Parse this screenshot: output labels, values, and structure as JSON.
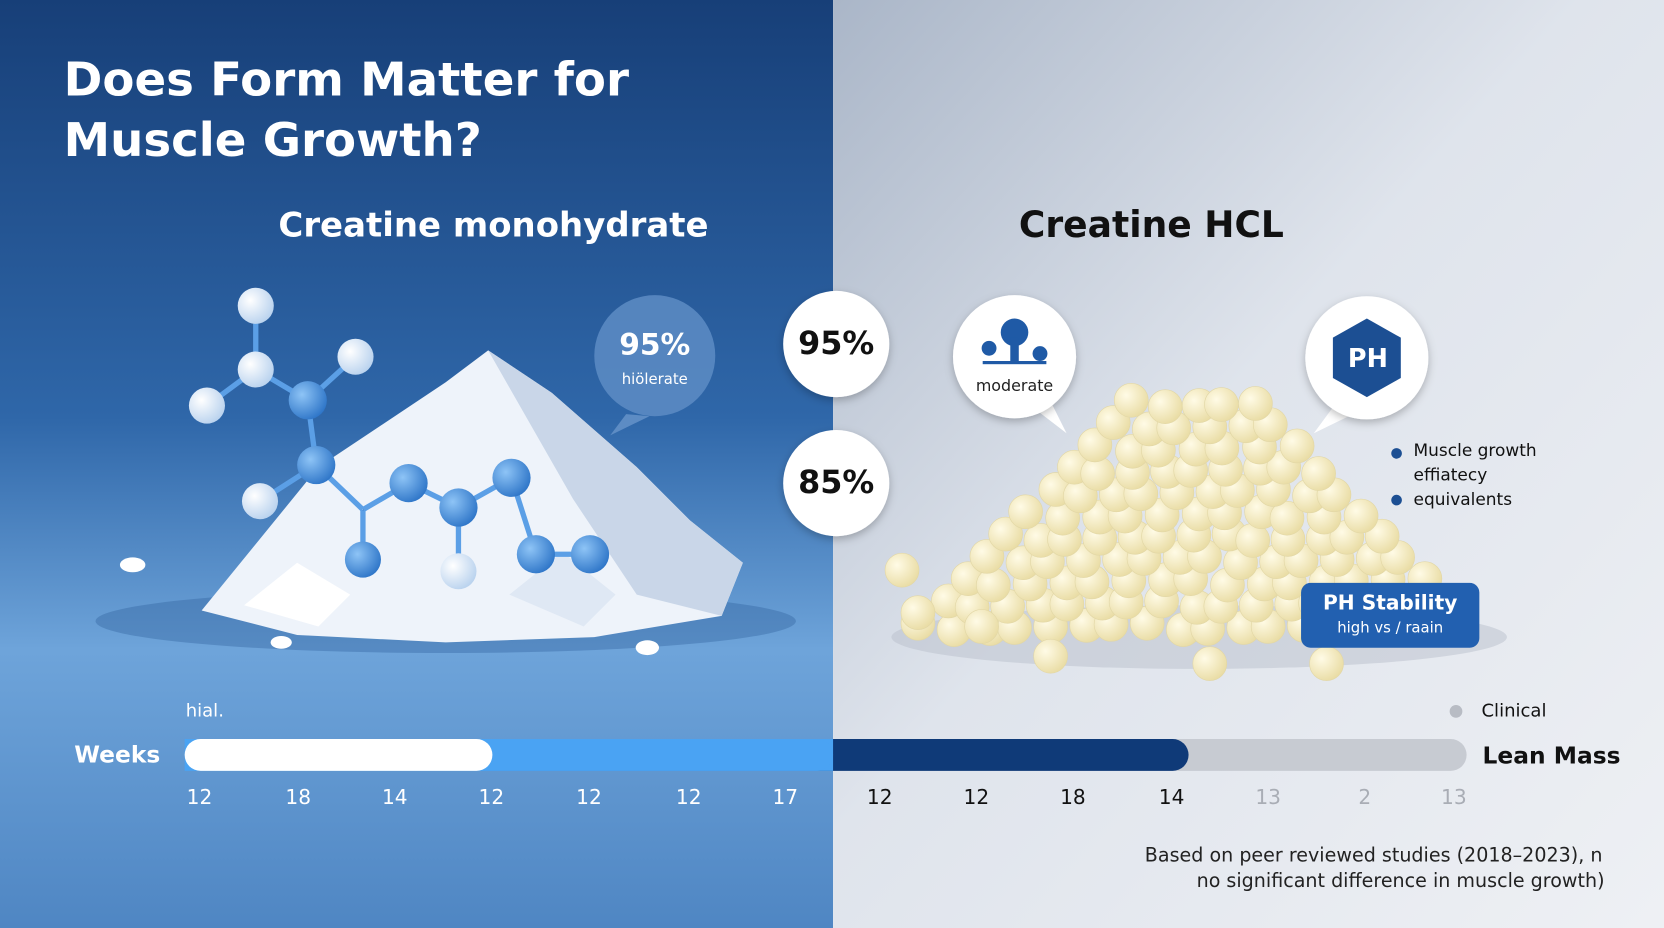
{
  "title": [
    "Does Form Matter for",
    "Muscle Growth?"
  ],
  "left": {
    "heading": "Creatine monohydrate",
    "bubble": {
      "value": "95%",
      "label": "hiölerate"
    }
  },
  "center": {
    "badges": [
      "95%",
      "85%"
    ]
  },
  "right": {
    "heading": "Creatine HCL",
    "bubble": {
      "label": "moderate"
    },
    "icon": "PH",
    "legend": [
      "Muscle growth",
      "effiatecy",
      "equivalents"
    ],
    "ph_box": {
      "title": "PH Stability",
      "subtitle": "high vs / raain"
    }
  },
  "timeline": {
    "note": "hial.",
    "left_label": "Weeks",
    "right_label": "Lean Mass",
    "legend": "Clinical",
    "ticks": [
      "12",
      "18",
      "14",
      "12",
      "12",
      "12",
      "17",
      "12",
      "12",
      "18",
      "14",
      "13",
      "2",
      "13"
    ]
  },
  "footnote": [
    "Based on peer reviewed studies (2018–2023), n",
    "no significant difference in muscle growth)"
  ]
}
